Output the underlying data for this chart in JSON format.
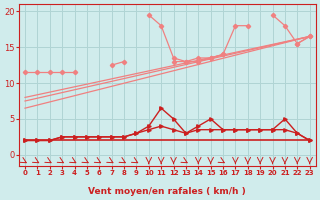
{
  "x": [
    0,
    1,
    2,
    3,
    4,
    5,
    6,
    7,
    8,
    9,
    10,
    11,
    12,
    13,
    14,
    15,
    16,
    17,
    18,
    19,
    20,
    21,
    22,
    23
  ],
  "light_line1": [
    11.5,
    11.5,
    11.5,
    11.5,
    11.5,
    null,
    null,
    12.5,
    13.0,
    null,
    19.5,
    18.0,
    13.5,
    13.0,
    13.5,
    13.5,
    14.0,
    18.0,
    18.0,
    null,
    19.5,
    18.0,
    15.5,
    16.5
  ],
  "light_line2": [
    null,
    null,
    null,
    null,
    null,
    null,
    null,
    null,
    null,
    null,
    null,
    null,
    13.0,
    13.0,
    13.0,
    13.5,
    14.0,
    null,
    null,
    null,
    null,
    null,
    15.5,
    16.5
  ],
  "diag_line1": [
    6.5,
    null,
    null,
    null,
    null,
    null,
    null,
    null,
    null,
    null,
    null,
    null,
    null,
    null,
    null,
    null,
    null,
    null,
    null,
    null,
    null,
    null,
    null,
    16.5
  ],
  "diag_line2": [
    7.5,
    null,
    null,
    null,
    null,
    null,
    null,
    null,
    null,
    null,
    null,
    null,
    null,
    null,
    null,
    null,
    null,
    null,
    null,
    null,
    null,
    null,
    null,
    16.5
  ],
  "diag_line3": [
    8.0,
    null,
    null,
    null,
    null,
    null,
    null,
    null,
    null,
    null,
    null,
    null,
    null,
    null,
    null,
    null,
    null,
    null,
    null,
    null,
    null,
    null,
    null,
    16.5
  ],
  "dark_line1": [
    2.0,
    2.0,
    2.0,
    2.5,
    2.5,
    2.5,
    2.5,
    2.5,
    2.5,
    3.0,
    4.0,
    6.5,
    5.0,
    3.0,
    4.0,
    5.0,
    3.5,
    3.5,
    3.5,
    3.5,
    3.5,
    5.0,
    3.0,
    2.0
  ],
  "dark_line2": [
    2.0,
    2.0,
    2.0,
    2.5,
    2.5,
    2.5,
    2.5,
    2.5,
    2.5,
    3.0,
    3.5,
    4.0,
    3.5,
    3.0,
    3.5,
    3.5,
    3.5,
    3.5,
    3.5,
    3.5,
    3.5,
    3.5,
    3.0,
    2.0
  ],
  "dark_line3": [
    2.0,
    2.0,
    2.0,
    2.0,
    2.0,
    2.0,
    2.0,
    2.0,
    2.0,
    2.0,
    2.0,
    2.0,
    2.0,
    2.0,
    2.0,
    2.0,
    2.0,
    2.0,
    2.0,
    2.0,
    2.0,
    2.0,
    2.0,
    2.0
  ],
  "wind_dirs": [
    2,
    2,
    2,
    2,
    2,
    2,
    2,
    2,
    2,
    2,
    3,
    3,
    3,
    2,
    3,
    3,
    2,
    3,
    3,
    3,
    3,
    3,
    3,
    3
  ],
  "bg_color": "#d0ecec",
  "grid_color": "#b0d4d4",
  "light_color": "#f08080",
  "dark_color": "#cc2020",
  "xlabel": "Vent moyen/en rafales ( km/h )",
  "ylim": [
    -1.5,
    21
  ],
  "yticks": [
    0,
    5,
    10,
    15,
    20
  ],
  "figsize": [
    3.2,
    2.0
  ],
  "dpi": 100
}
